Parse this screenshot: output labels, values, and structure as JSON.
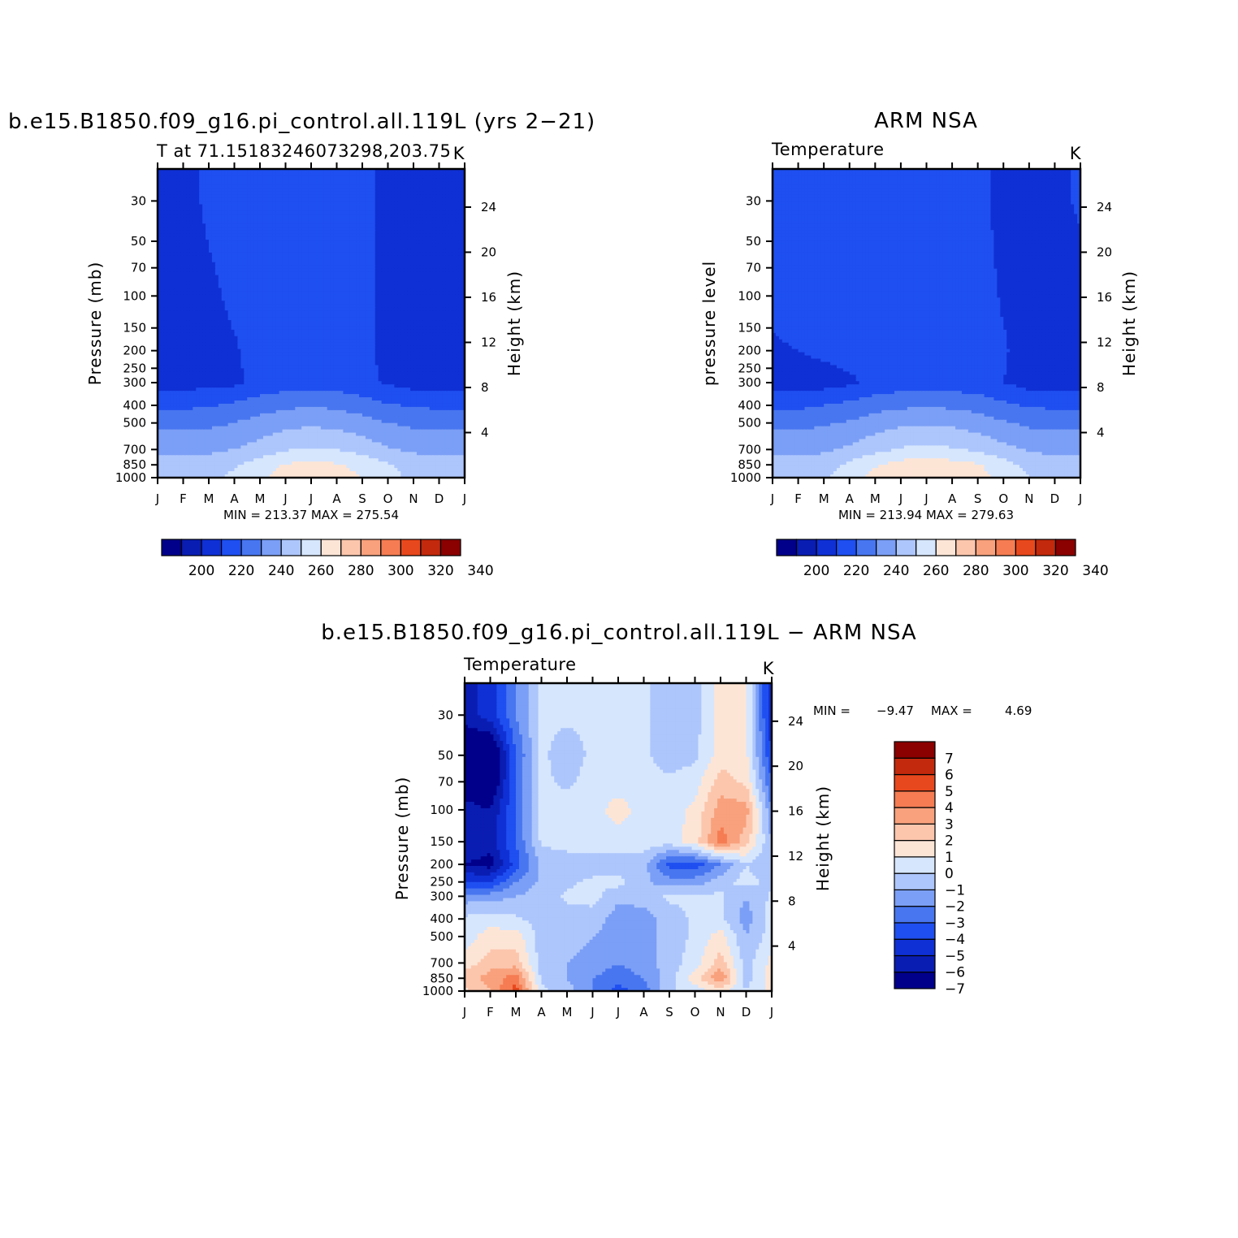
{
  "colors": {
    "scale": [
      "#00008b",
      "#0a1db2",
      "#0f30d4",
      "#1f4ff0",
      "#4876f0",
      "#7b9ff6",
      "#adc6fc",
      "#d6e6fd",
      "#fde5d6",
      "#fcc6ad",
      "#f8a17c",
      "#f57c53",
      "#e8481d",
      "#c2290d",
      "#8b0000"
    ],
    "diff": [
      "#00008b",
      "#0a1db2",
      "#0f30d4",
      "#1f4ff0",
      "#4876f0",
      "#7b9ff6",
      "#adc6fc",
      "#d6e6fd",
      "#fde5d6",
      "#fcc6ad",
      "#f8a17c",
      "#f57c53",
      "#e8481d",
      "#c2290d",
      "#8b0000"
    ]
  },
  "chart_data": [
    {
      "type": "heatmap",
      "panel": "model",
      "title": "b.e15.B1850.f09_g16.pi_control.all.119L (yrs 2−21)",
      "subtitle_left": "T at 71.15183246073298,203.75",
      "subtitle_right": "K",
      "ylabel": "Pressure (mb)",
      "ylabel_right": "Height (km)",
      "x_ticks": [
        "J",
        "F",
        "M",
        "A",
        "M",
        "J",
        "J",
        "A",
        "S",
        "O",
        "N",
        "D",
        "J"
      ],
      "y_ticks": [
        "30",
        "50",
        "70",
        "100",
        "150",
        "200",
        "250",
        "300",
        "400",
        "500",
        "700",
        "850",
        "1000"
      ],
      "y_ticks_right": [
        "24",
        "20",
        "16",
        "12",
        "8",
        "4"
      ],
      "stats": "MIN = 213.37 MAX = 275.54",
      "colorbar_labels": [
        "200",
        "220",
        "240",
        "260",
        "280",
        "300",
        "320",
        "340"
      ],
      "months": [
        1,
        2,
        3,
        4,
        5,
        6,
        7,
        8,
        9,
        10,
        11,
        12,
        13
      ],
      "levels_mb": [
        30,
        100,
        200,
        300,
        400,
        500,
        700,
        850,
        1000
      ],
      "values_K": [
        [
          215,
          216,
          222,
          224,
          224,
          224,
          222,
          222,
          222,
          218,
          216,
          215,
          215
        ],
        [
          213,
          214,
          218,
          222,
          224,
          224,
          224,
          224,
          222,
          218,
          215,
          214,
          213
        ],
        [
          213,
          214,
          216,
          219,
          224,
          225,
          225,
          225,
          222,
          218,
          215,
          214,
          213
        ],
        [
          215,
          216,
          217,
          218,
          223,
          225,
          225,
          225,
          222,
          219,
          216,
          215,
          215
        ],
        [
          228,
          228,
          229,
          232,
          235,
          238,
          239,
          238,
          235,
          231,
          229,
          228,
          228
        ],
        [
          237,
          237,
          238,
          240,
          244,
          247,
          248,
          247,
          244,
          240,
          238,
          237,
          237
        ],
        [
          247,
          247,
          248,
          250,
          254,
          259,
          261,
          260,
          256,
          251,
          248,
          247,
          247
        ],
        [
          254,
          254,
          255,
          259,
          265,
          271,
          272,
          271,
          267,
          261,
          256,
          254,
          254
        ],
        [
          256,
          256,
          257,
          262,
          268,
          274,
          275,
          274,
          270,
          263,
          258,
          256,
          256
        ]
      ]
    },
    {
      "type": "heatmap",
      "panel": "obs",
      "title": "ARM NSA",
      "subtitle_left": "Temperature",
      "subtitle_right": "K",
      "ylabel": "pressure level",
      "ylabel_right": "Height (km)",
      "x_ticks": [
        "J",
        "F",
        "M",
        "A",
        "M",
        "J",
        "J",
        "A",
        "S",
        "O",
        "N",
        "D",
        "J"
      ],
      "y_ticks": [
        "30",
        "50",
        "70",
        "100",
        "150",
        "200",
        "250",
        "300",
        "400",
        "500",
        "700",
        "850",
        "1000"
      ],
      "y_ticks_right": [
        "24",
        "20",
        "16",
        "12",
        "8",
        "4"
      ],
      "stats": "MIN = 213.94 MAX = 279.63",
      "colorbar_labels": [
        "200",
        "220",
        "240",
        "260",
        "280",
        "300",
        "320",
        "340"
      ],
      "months": [
        1,
        2,
        3,
        4,
        5,
        6,
        7,
        8,
        9,
        10,
        11,
        12,
        13
      ],
      "levels_mb": [
        30,
        100,
        200,
        300,
        400,
        500,
        700,
        850,
        1000
      ],
      "values_K": [
        [
          222,
          224,
          224,
          224,
          224,
          224,
          224,
          224,
          224,
          216,
          215,
          216,
          222
        ],
        [
          222,
          224,
          224,
          224,
          224,
          224,
          224,
          224,
          224,
          219,
          216,
          215,
          215
        ],
        [
          219,
          220,
          222,
          224,
          225,
          225,
          225,
          225,
          224,
          221,
          216,
          215,
          215
        ],
        [
          214,
          215,
          216,
          218,
          223,
          225,
          225,
          225,
          224,
          220,
          216,
          215,
          215
        ],
        [
          228,
          228,
          230,
          233,
          236,
          238,
          239,
          238,
          236,
          232,
          229,
          228,
          228
        ],
        [
          237,
          237,
          239,
          241,
          245,
          248,
          249,
          248,
          245,
          241,
          238,
          237,
          237
        ],
        [
          247,
          247,
          248,
          252,
          257,
          261,
          262,
          261,
          258,
          253,
          249,
          247,
          247
        ],
        [
          254,
          254,
          256,
          262,
          269,
          274,
          275,
          274,
          271,
          264,
          257,
          254,
          254
        ],
        [
          257,
          257,
          259,
          266,
          273,
          278,
          279,
          278,
          274,
          267,
          260,
          257,
          257
        ]
      ]
    },
    {
      "type": "heatmap",
      "panel": "difference",
      "title": "b.e15.B1850.f09_g16.pi_control.all.119L − ARM NSA",
      "subtitle_left": "Temperature",
      "subtitle_right": "K",
      "ylabel": "Pressure (mb)",
      "ylabel_right": "Height (km)",
      "x_ticks": [
        "J",
        "F",
        "M",
        "A",
        "M",
        "J",
        "J",
        "A",
        "S",
        "O",
        "N",
        "D",
        "J"
      ],
      "y_ticks": [
        "30",
        "50",
        "70",
        "100",
        "150",
        "200",
        "250",
        "300",
        "400",
        "500",
        "700",
        "850",
        "1000"
      ],
      "y_ticks_right": [
        "24",
        "20",
        "16",
        "12",
        "8",
        "4"
      ],
      "stats_min_label": "MIN =",
      "stats_min": "−9.47",
      "stats_max_label": "MAX =",
      "stats_max": "4.69",
      "colorbar_labels": [
        "7",
        "6",
        "5",
        "4",
        "3",
        "2",
        "1",
        "0",
        "−1",
        "−2",
        "−3",
        "−4",
        "−5",
        "−6",
        "−7"
      ],
      "months": [
        1,
        2,
        3,
        4,
        5,
        6,
        7,
        8,
        9,
        10,
        11,
        12,
        13
      ],
      "levels_mb": [
        30,
        50,
        70,
        100,
        150,
        200,
        250,
        300,
        400,
        500,
        700,
        850,
        1000
      ],
      "values_K": [
        [
          -6.5,
          -5.5,
          -3.0,
          -0.8,
          -0.8,
          -0.8,
          -0.4,
          -0.8,
          -1.5,
          -1.5,
          0.5,
          0.3,
          -6.0
        ],
        [
          -8.5,
          -9.0,
          -4.0,
          -0.8,
          -1.5,
          -0.8,
          -0.8,
          -0.8,
          -1.5,
          -1.2,
          0.5,
          0.3,
          -5.0
        ],
        [
          -8.0,
          -8.5,
          -4.0,
          -0.8,
          -1.2,
          -0.6,
          -0.6,
          -0.6,
          -0.8,
          -0.5,
          1.5,
          0.8,
          -4.0
        ],
        [
          -6.5,
          -7.0,
          -4.0,
          -0.8,
          -0.6,
          -0.5,
          0.5,
          -0.5,
          -0.5,
          0.3,
          2.5,
          2.5,
          -3.0
        ],
        [
          -6.0,
          -6.5,
          -4.0,
          -0.8,
          -0.6,
          -0.5,
          -0.5,
          -0.5,
          -0.5,
          0.5,
          3.5,
          1.5,
          -2.0
        ],
        [
          -7.0,
          -7.5,
          -4.5,
          -1.8,
          -1.5,
          -1.5,
          -1.5,
          -1.5,
          -4.5,
          -4.5,
          -3.0,
          -1.0,
          -2.0
        ],
        [
          -5.0,
          -5.0,
          -3.0,
          -1.8,
          -1.2,
          -0.8,
          -0.6,
          -1.8,
          -2.5,
          -2.5,
          -1.5,
          -0.5,
          -1.5
        ],
        [
          -2.5,
          -2.5,
          -2.0,
          -1.5,
          -0.8,
          -0.6,
          -1.8,
          -1.5,
          -0.8,
          -0.8,
          -0.8,
          -2.0,
          -0.8
        ],
        [
          -0.8,
          -0.5,
          -0.8,
          -1.5,
          -1.5,
          -1.5,
          -2.5,
          -2.5,
          -1.5,
          -0.8,
          -0.8,
          -2.5,
          -0.5
        ],
        [
          -0.5,
          0.5,
          0.5,
          -1.5,
          -1.5,
          -2.0,
          -2.5,
          -2.5,
          -1.5,
          -0.8,
          0.5,
          -2.0,
          -0.5
        ],
        [
          0.5,
          1.5,
          1.5,
          -1.5,
          -2.0,
          -2.5,
          -3.0,
          -2.5,
          -1.5,
          -0.5,
          1.5,
          -1.5,
          0.3
        ],
        [
          1.5,
          2.5,
          3.5,
          -1.2,
          -2.0,
          -3.0,
          -3.5,
          -3.0,
          -1.5,
          0.5,
          3.0,
          -1.5,
          0.5
        ],
        [
          0.8,
          2.0,
          4.5,
          -0.8,
          -1.5,
          -3.0,
          -4.5,
          -3.5,
          -1.2,
          -0.5,
          0.5,
          -1.0,
          0.3
        ]
      ]
    }
  ]
}
